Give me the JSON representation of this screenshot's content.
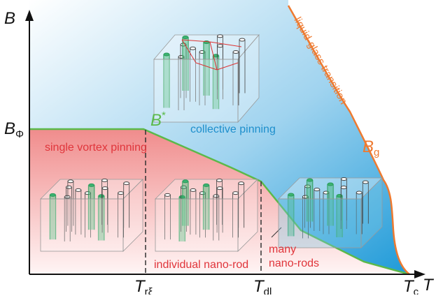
{
  "axes": {
    "y": {
      "label": "B"
    },
    "x": {
      "label": "T"
    }
  },
  "y_marks": {
    "b_phi": {
      "base": "B",
      "sub": "Φ"
    }
  },
  "x_marks": {
    "t_rxi": {
      "base": "T",
      "sub": "rξ"
    },
    "t_dl": {
      "base": "T",
      "sub": "dl"
    },
    "t_c": {
      "base": "T",
      "sub": "c"
    }
  },
  "curves": {
    "b_star": {
      "base": "B",
      "sup": "*"
    },
    "b_g": {
      "base": "B",
      "sub": "g"
    },
    "liquid_glass": "liquid-glass transition"
  },
  "regions": {
    "collective": "collective pinning",
    "single": "single vortex pinning",
    "individual": "individual nano-rod",
    "many": [
      "many",
      "nano-rods"
    ]
  }
}
